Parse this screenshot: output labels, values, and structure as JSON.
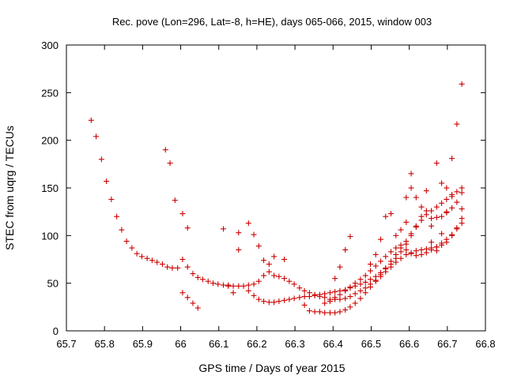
{
  "chart_data": {
    "type": "scatter",
    "title": "Rec. pove (Lon=296, Lat=-8, h=HE), days 065-066, 2015, window 003",
    "xlabel": "GPS time / Days of year 2015",
    "ylabel": "STEC from uqrg / TECUs",
    "xlim": [
      65.7,
      66.8
    ],
    "ylim": [
      0,
      300
    ],
    "x_ticks": [
      "65.7",
      "65.8",
      "65.9",
      "66",
      "66.1",
      "66.2",
      "66.3",
      "66.4",
      "66.5",
      "66.6",
      "66.7",
      "66.8"
    ],
    "y_ticks": [
      "0",
      "50",
      "100",
      "150",
      "200",
      "250",
      "300"
    ],
    "grid": false,
    "marker": "+",
    "color": "#cc0000",
    "points": [
      [
        65.765,
        221
      ],
      [
        65.778,
        204
      ],
      [
        65.792,
        180
      ],
      [
        65.805,
        157
      ],
      [
        65.818,
        138
      ],
      [
        65.832,
        120
      ],
      [
        65.845,
        106
      ],
      [
        65.858,
        94
      ],
      [
        65.872,
        87
      ],
      [
        65.885,
        81
      ],
      [
        65.898,
        78
      ],
      [
        65.912,
        76
      ],
      [
        65.925,
        74
      ],
      [
        65.938,
        72
      ],
      [
        65.952,
        70
      ],
      [
        65.965,
        67
      ],
      [
        65.978,
        66
      ],
      [
        65.992,
        66
      ],
      [
        65.96,
        190
      ],
      [
        65.972,
        176
      ],
      [
        65.985,
        137
      ],
      [
        66.005,
        123
      ],
      [
        66.018,
        108
      ],
      [
        66.005,
        75
      ],
      [
        66.018,
        67
      ],
      [
        66.032,
        60
      ],
      [
        66.045,
        56
      ],
      [
        66.058,
        54
      ],
      [
        66.072,
        52
      ],
      [
        66.085,
        50
      ],
      [
        66.098,
        49
      ],
      [
        66.112,
        48
      ],
      [
        66.125,
        48
      ],
      [
        66.138,
        47
      ],
      [
        66.152,
        47
      ],
      [
        66.165,
        47
      ],
      [
        66.178,
        48
      ],
      [
        66.192,
        49
      ],
      [
        66.205,
        52
      ],
      [
        66.218,
        58
      ],
      [
        66.232,
        62
      ],
      [
        66.245,
        58
      ],
      [
        66.258,
        57
      ],
      [
        66.272,
        55
      ],
      [
        66.285,
        52
      ],
      [
        66.298,
        49
      ],
      [
        66.312,
        45
      ],
      [
        66.325,
        42
      ],
      [
        66.338,
        40
      ],
      [
        66.352,
        38
      ],
      [
        66.365,
        36
      ],
      [
        66.378,
        35
      ],
      [
        66.392,
        33
      ],
      [
        66.405,
        33
      ],
      [
        66.418,
        33
      ],
      [
        66.432,
        34
      ],
      [
        66.445,
        36
      ],
      [
        66.458,
        39
      ],
      [
        66.472,
        42
      ],
      [
        66.485,
        45
      ],
      [
        66.498,
        49
      ],
      [
        66.512,
        53
      ],
      [
        66.525,
        57
      ],
      [
        66.538,
        62
      ],
      [
        66.552,
        67
      ],
      [
        66.565,
        72
      ],
      [
        66.578,
        76
      ],
      [
        66.592,
        80
      ],
      [
        66.605,
        82
      ],
      [
        66.618,
        84
      ],
      [
        66.632,
        85
      ],
      [
        66.645,
        86
      ],
      [
        66.658,
        87
      ],
      [
        66.672,
        88
      ],
      [
        66.685,
        90
      ],
      [
        66.698,
        93
      ],
      [
        66.712,
        100
      ],
      [
        66.725,
        108
      ],
      [
        66.738,
        118
      ],
      [
        66.005,
        40
      ],
      [
        66.018,
        35
      ],
      [
        66.032,
        29
      ],
      [
        66.045,
        24
      ],
      [
        66.112,
        107
      ],
      [
        66.125,
        47
      ],
      [
        66.138,
        40
      ],
      [
        66.152,
        85
      ],
      [
        66.152,
        103
      ],
      [
        66.178,
        113
      ],
      [
        66.192,
        101
      ],
      [
        66.205,
        89
      ],
      [
        66.218,
        74
      ],
      [
        66.232,
        70
      ],
      [
        66.245,
        78
      ],
      [
        66.272,
        75
      ],
      [
        66.178,
        42
      ],
      [
        66.192,
        37
      ],
      [
        66.205,
        33
      ],
      [
        66.218,
        31
      ],
      [
        66.232,
        30
      ],
      [
        66.245,
        30
      ],
      [
        66.258,
        31
      ],
      [
        66.272,
        32
      ],
      [
        66.285,
        33
      ],
      [
        66.298,
        34
      ],
      [
        66.312,
        35
      ],
      [
        66.325,
        36
      ],
      [
        66.338,
        36
      ],
      [
        66.352,
        37
      ],
      [
        66.365,
        38
      ],
      [
        66.378,
        39
      ],
      [
        66.392,
        40
      ],
      [
        66.405,
        41
      ],
      [
        66.418,
        42
      ],
      [
        66.432,
        43
      ],
      [
        66.445,
        45
      ],
      [
        66.458,
        47
      ],
      [
        66.472,
        49
      ],
      [
        66.485,
        51
      ],
      [
        66.498,
        54
      ],
      [
        66.512,
        57
      ],
      [
        66.525,
        61
      ],
      [
        66.538,
        65
      ],
      [
        66.552,
        70
      ],
      [
        66.565,
        76
      ],
      [
        66.578,
        83
      ],
      [
        66.592,
        91
      ],
      [
        66.605,
        100
      ],
      [
        66.618,
        110
      ],
      [
        66.632,
        120
      ],
      [
        66.645,
        126
      ],
      [
        66.658,
        118
      ],
      [
        66.672,
        119
      ],
      [
        66.685,
        120
      ],
      [
        66.698,
        124
      ],
      [
        66.712,
        129
      ],
      [
        66.725,
        135
      ],
      [
        66.738,
        145
      ],
      [
        66.325,
        27
      ],
      [
        66.338,
        21
      ],
      [
        66.352,
        20
      ],
      [
        66.365,
        20
      ],
      [
        66.378,
        19
      ],
      [
        66.392,
        19
      ],
      [
        66.405,
        19
      ],
      [
        66.418,
        20
      ],
      [
        66.432,
        22
      ],
      [
        66.445,
        25
      ],
      [
        66.458,
        29
      ],
      [
        66.472,
        34
      ],
      [
        66.485,
        40
      ],
      [
        66.498,
        46
      ],
      [
        66.512,
        52
      ],
      [
        66.525,
        59
      ],
      [
        66.538,
        66
      ],
      [
        66.552,
        73
      ],
      [
        66.565,
        80
      ],
      [
        66.578,
        87
      ],
      [
        66.592,
        94
      ],
      [
        66.605,
        102
      ],
      [
        66.618,
        109
      ],
      [
        66.632,
        116
      ],
      [
        66.645,
        122
      ],
      [
        66.658,
        126
      ],
      [
        66.672,
        130
      ],
      [
        66.685,
        134
      ],
      [
        66.698,
        138
      ],
      [
        66.712,
        141
      ],
      [
        66.725,
        146
      ],
      [
        66.738,
        150
      ],
      [
        66.378,
        29
      ],
      [
        66.392,
        31
      ],
      [
        66.405,
        35
      ],
      [
        66.418,
        38
      ],
      [
        66.432,
        42
      ],
      [
        66.445,
        46
      ],
      [
        66.458,
        50
      ],
      [
        66.472,
        54
      ],
      [
        66.485,
        58
      ],
      [
        66.498,
        63
      ],
      [
        66.512,
        68
      ],
      [
        66.525,
        73
      ],
      [
        66.538,
        78
      ],
      [
        66.552,
        83
      ],
      [
        66.565,
        87
      ],
      [
        66.578,
        90
      ],
      [
        66.592,
        85
      ],
      [
        66.605,
        81
      ],
      [
        66.618,
        79
      ],
      [
        66.632,
        80
      ],
      [
        66.645,
        82
      ],
      [
        66.658,
        85
      ],
      [
        66.672,
        88
      ],
      [
        66.685,
        92
      ],
      [
        66.698,
        96
      ],
      [
        66.712,
        101
      ],
      [
        66.725,
        107
      ],
      [
        66.738,
        113
      ],
      [
        66.405,
        55
      ],
      [
        66.418,
        67
      ],
      [
        66.432,
        85
      ],
      [
        66.445,
        99
      ],
      [
        66.498,
        70
      ],
      [
        66.512,
        80
      ],
      [
        66.525,
        96
      ],
      [
        66.538,
        120
      ],
      [
        66.552,
        123
      ],
      [
        66.565,
        100
      ],
      [
        66.578,
        106
      ],
      [
        66.592,
        114
      ],
      [
        66.592,
        140
      ],
      [
        66.605,
        165
      ],
      [
        66.605,
        150
      ],
      [
        66.618,
        140
      ],
      [
        66.632,
        130
      ],
      [
        66.645,
        147
      ],
      [
        66.658,
        110
      ],
      [
        66.672,
        176
      ],
      [
        66.685,
        155
      ],
      [
        66.698,
        150
      ],
      [
        66.712,
        181
      ],
      [
        66.725,
        217
      ],
      [
        66.738,
        259
      ],
      [
        66.738,
        128
      ],
      [
        66.698,
        125
      ],
      [
        66.712,
        143
      ],
      [
        66.685,
        102
      ],
      [
        66.672,
        84
      ],
      [
        66.658,
        93
      ]
    ]
  }
}
